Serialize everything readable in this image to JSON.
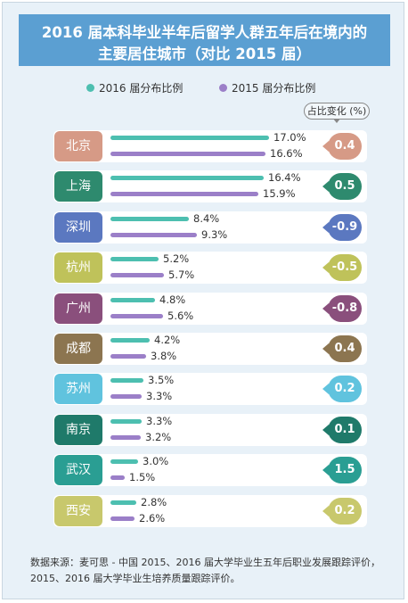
{
  "title": {
    "line1": "2016 届本科毕业半年后留学人群五年后在境内的",
    "line2": "主要居住城市（对比 2015 届）"
  },
  "legend": {
    "s2016": "2016 届分布比例",
    "s2015": "2015 届分布比例"
  },
  "change_header": "占比变化 (%)",
  "colors": {
    "title_bg": "#5b9fd2",
    "series_2016": "#4dbfb0",
    "series_2015": "#9b7fc8",
    "background": "#e8f1f8"
  },
  "chart_data": {
    "type": "bar",
    "title": "2016 届本科毕业半年后留学人群五年后在境内的主要居住城市（对比 2015 届）",
    "categories": [
      "北京",
      "上海",
      "深圳",
      "杭州",
      "广州",
      "成都",
      "苏州",
      "南京",
      "武汉",
      "西安"
    ],
    "series": [
      {
        "name": "2016 届分布比例",
        "values": [
          17.0,
          16.4,
          8.4,
          5.2,
          4.8,
          4.2,
          3.5,
          3.3,
          3.0,
          2.8
        ],
        "labels": [
          "17.0%",
          "16.4%",
          "8.4%",
          "5.2%",
          "4.8%",
          "4.2%",
          "3.5%",
          "3.3%",
          "3.0%",
          "2.8%"
        ]
      },
      {
        "name": "2015 届分布比例",
        "values": [
          16.6,
          15.9,
          9.3,
          5.7,
          5.6,
          3.8,
          3.3,
          3.2,
          1.5,
          2.6
        ],
        "labels": [
          "16.6%",
          "15.9%",
          "9.3%",
          "5.7%",
          "5.6%",
          "3.8%",
          "3.3%",
          "3.2%",
          "1.5%",
          "2.6%"
        ]
      }
    ],
    "change": [
      "0.4",
      "0.5",
      "-0.9",
      "-0.5",
      "-0.8",
      "0.4",
      "0.2",
      "0.1",
      "1.5",
      "0.2"
    ],
    "city_colors": [
      "#d69a86",
      "#2e8a6e",
      "#5b78c0",
      "#bfc25a",
      "#8a4f7c",
      "#8c7550",
      "#60c3de",
      "#1f7a6a",
      "#2a9e93",
      "#c8c86c"
    ],
    "xlim": [
      0,
      17.0
    ],
    "orientation": "horizontal"
  },
  "source": {
    "line1": "数据来源：麦可思 - 中国 2015、2016 届大学毕业生五年后职业发展跟踪评价，",
    "line2": "2015、2016 届大学毕业生培养质量跟踪评价。"
  }
}
